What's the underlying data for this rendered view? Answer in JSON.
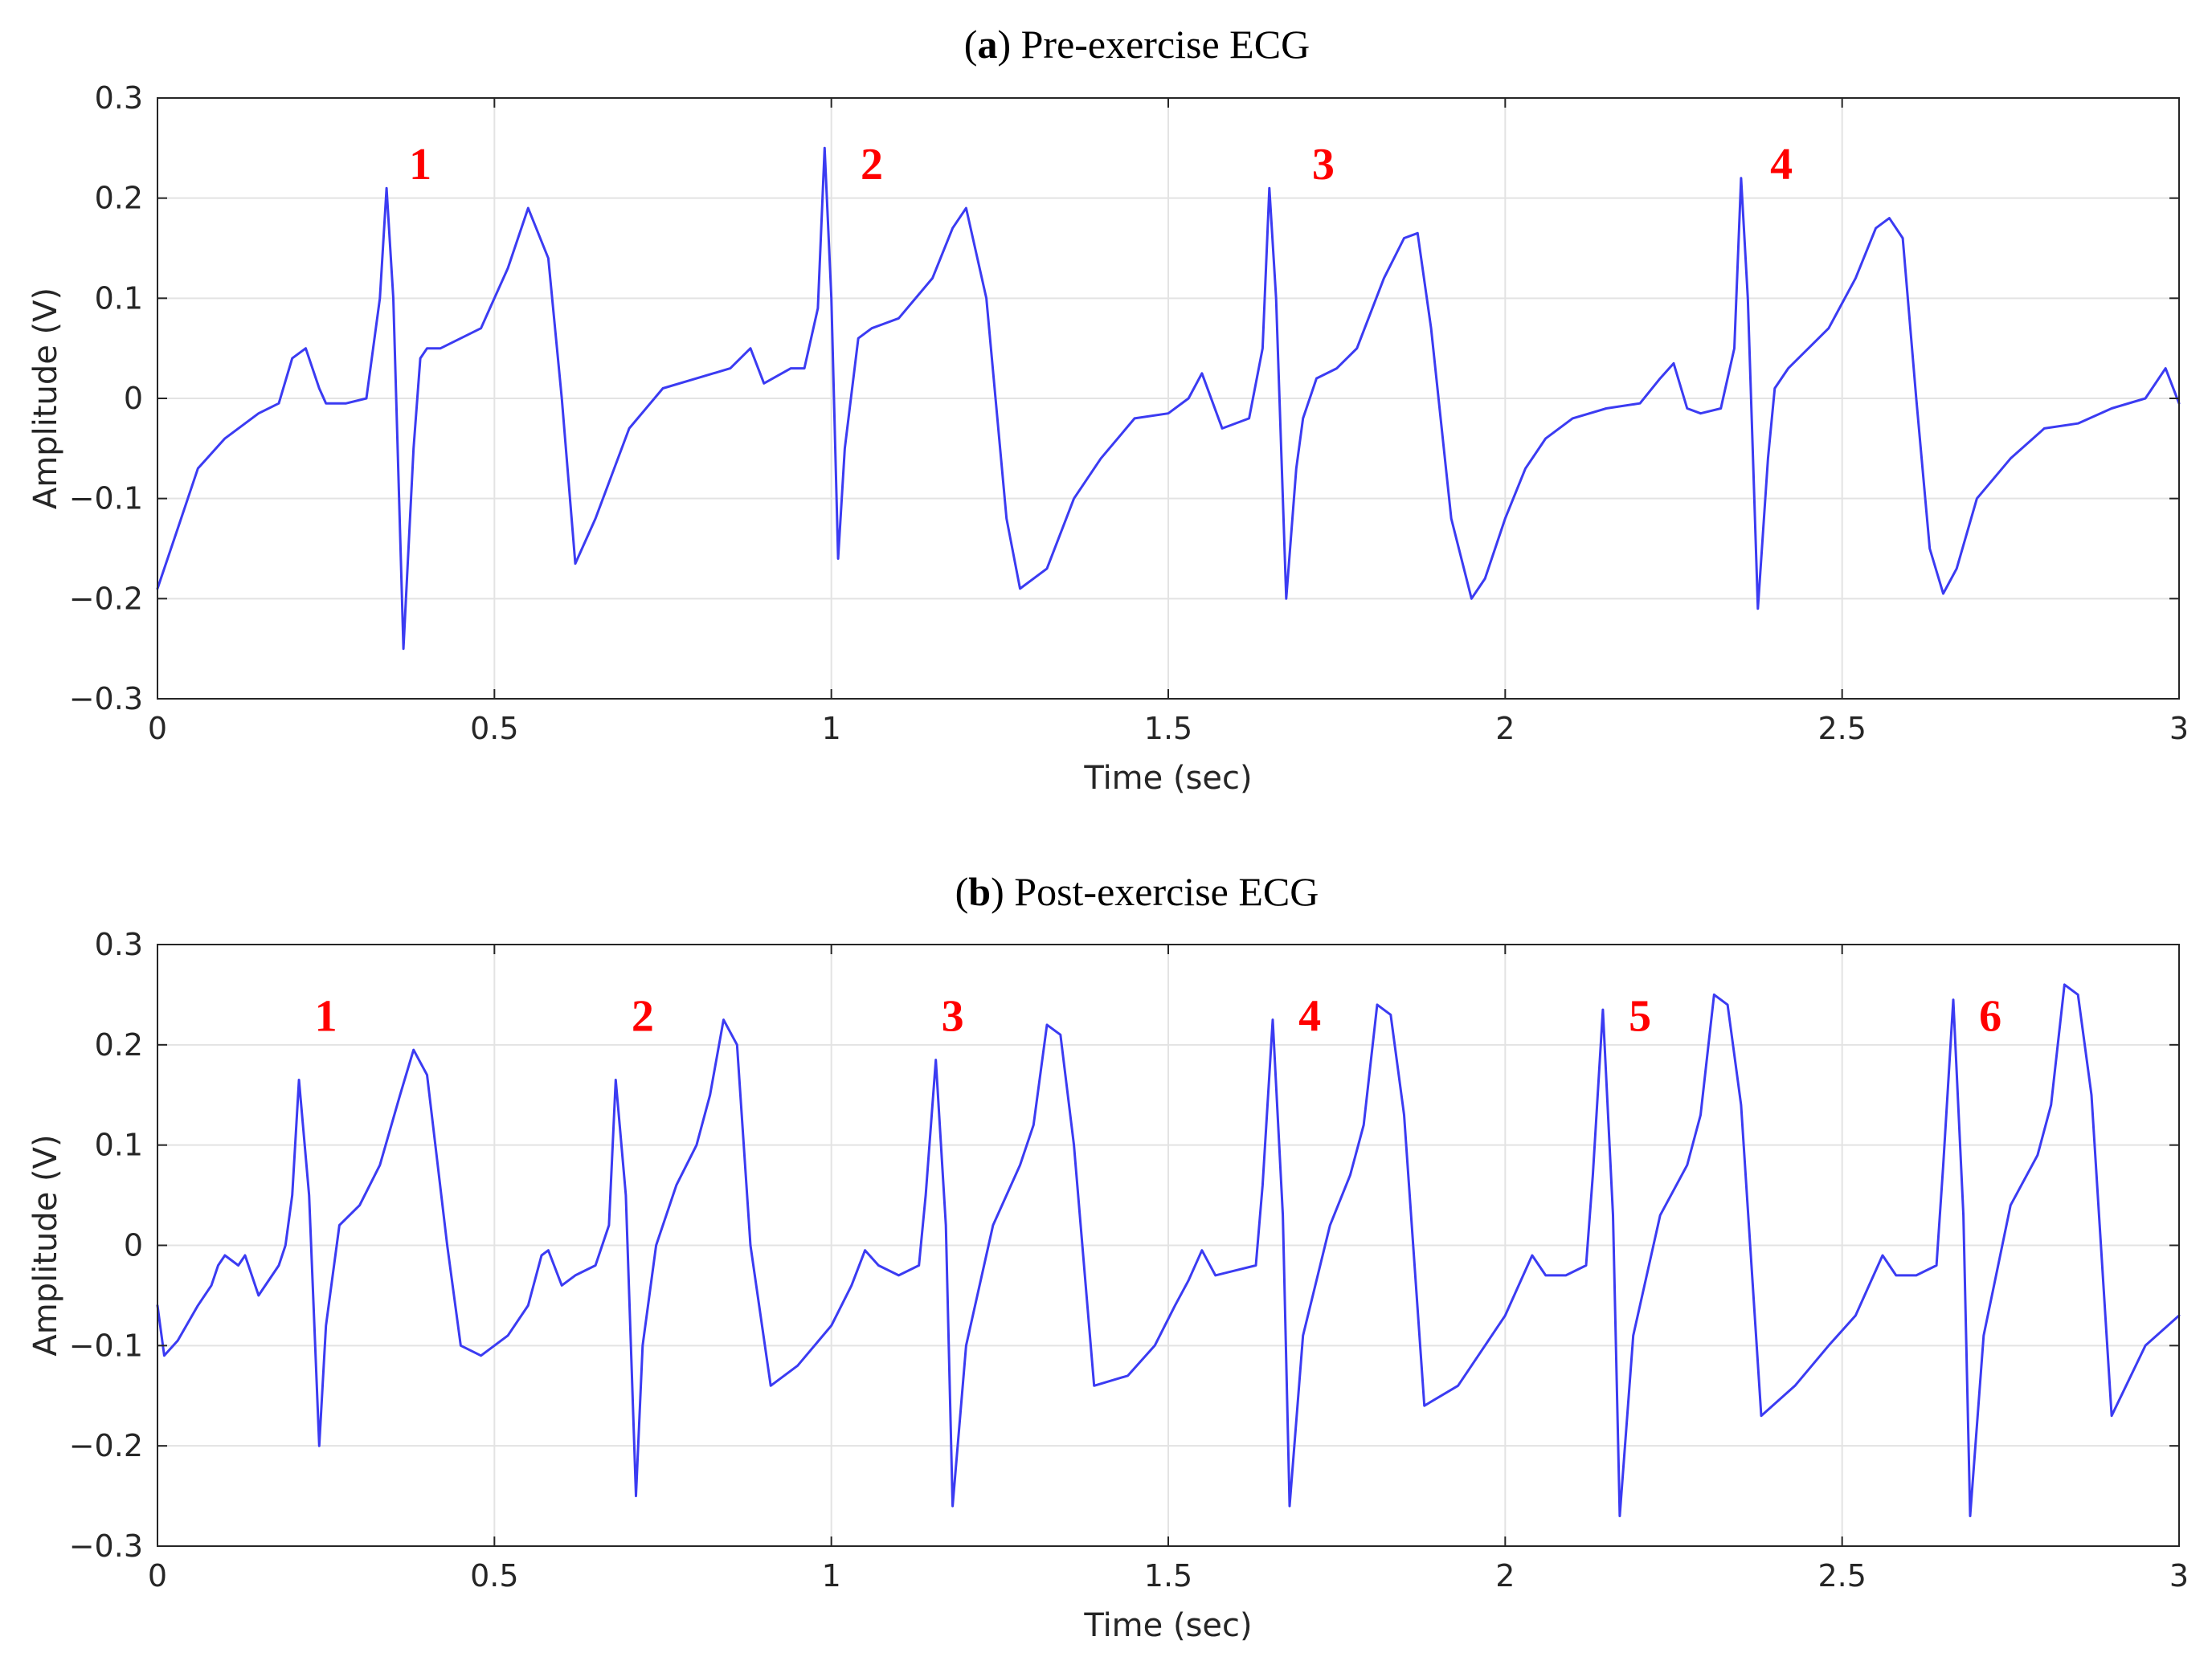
{
  "chart_data": [
    {
      "type": "line",
      "title": "Pre-exercise ECG",
      "title_prefix": "a",
      "xlabel": "Time (sec)",
      "ylabel": "Amplitude (V)",
      "xlim": [
        0,
        3
      ],
      "ylim": [
        -0.3,
        0.3
      ],
      "xticks": [
        0,
        0.5,
        1,
        1.5,
        2,
        2.5,
        3
      ],
      "xtick_labels": [
        "0",
        "0.5",
        "1",
        "1.5",
        "2",
        "2.5",
        "3"
      ],
      "yticks": [
        0.3,
        0.2,
        0.1,
        0,
        -0.1,
        -0.2,
        -0.3
      ],
      "ytick_labels": [
        "0.3",
        "0.2",
        "0.1",
        "0",
        "−0.1",
        "−0.2",
        "−0.3"
      ],
      "grid": true,
      "line_color": "#3b3bf2",
      "annotation_color": "#ff0000",
      "series": [
        {
          "name": "ECG",
          "x": [
            0,
            0.03,
            0.06,
            0.1,
            0.15,
            0.18,
            0.2,
            0.22,
            0.24,
            0.25,
            0.28,
            0.31,
            0.33,
            0.34,
            0.35,
            0.365,
            0.38,
            0.39,
            0.4,
            0.42,
            0.45,
            0.48,
            0.5,
            0.52,
            0.55,
            0.58,
            0.6,
            0.62,
            0.65,
            0.7,
            0.75,
            0.8,
            0.85,
            0.88,
            0.9,
            0.94,
            0.96,
            0.98,
            0.99,
            1.0,
            1.01,
            1.02,
            1.04,
            1.06,
            1.08,
            1.1,
            1.15,
            1.18,
            1.2,
            1.23,
            1.26,
            1.28,
            1.32,
            1.36,
            1.4,
            1.45,
            1.5,
            1.53,
            1.55,
            1.58,
            1.62,
            1.64,
            1.65,
            1.66,
            1.675,
            1.69,
            1.7,
            1.72,
            1.75,
            1.78,
            1.82,
            1.85,
            1.87,
            1.89,
            1.92,
            1.95,
            1.97,
            2.0,
            2.03,
            2.06,
            2.1,
            2.15,
            2.2,
            2.23,
            2.25,
            2.27,
            2.29,
            2.32,
            2.34,
            2.35,
            2.36,
            2.375,
            2.39,
            2.4,
            2.42,
            2.45,
            2.48,
            2.52,
            2.55,
            2.57,
            2.59,
            2.61,
            2.63,
            2.65,
            2.67,
            2.7,
            2.75,
            2.8,
            2.85,
            2.9,
            2.95,
            2.98,
            3.0
          ],
          "y": [
            -0.19,
            -0.13,
            -0.07,
            -0.04,
            -0.015,
            -0.005,
            0.04,
            0.05,
            0.01,
            -0.005,
            -0.005,
            0.0,
            0.1,
            0.21,
            0.1,
            -0.25,
            -0.05,
            0.04,
            0.05,
            0.05,
            0.06,
            0.07,
            0.1,
            0.13,
            0.19,
            0.14,
            0.0,
            -0.165,
            -0.12,
            -0.03,
            0.01,
            0.02,
            0.03,
            0.05,
            0.015,
            0.03,
            0.03,
            0.09,
            0.25,
            0.1,
            -0.16,
            -0.05,
            0.06,
            0.07,
            0.075,
            0.08,
            0.12,
            0.17,
            0.19,
            0.1,
            -0.12,
            -0.19,
            -0.17,
            -0.1,
            -0.06,
            -0.02,
            -0.015,
            0.0,
            0.025,
            -0.03,
            -0.02,
            0.05,
            0.21,
            0.1,
            -0.2,
            -0.07,
            -0.02,
            0.02,
            0.03,
            0.05,
            0.12,
            0.16,
            0.165,
            0.07,
            -0.12,
            -0.2,
            -0.18,
            -0.12,
            -0.07,
            -0.04,
            -0.02,
            -0.01,
            -0.005,
            0.02,
            0.035,
            -0.01,
            -0.015,
            -0.01,
            0.05,
            0.22,
            0.1,
            -0.21,
            -0.06,
            0.01,
            0.03,
            0.05,
            0.07,
            0.12,
            0.17,
            0.18,
            0.16,
            0.0,
            -0.15,
            -0.195,
            -0.17,
            -0.1,
            -0.06,
            -0.03,
            -0.025,
            -0.01,
            0.0,
            0.03,
            -0.005
          ]
        }
      ],
      "annotations": [
        {
          "text": "1",
          "x": 0.39,
          "y": 0.235
        },
        {
          "text": "2",
          "x": 1.06,
          "y": 0.235
        },
        {
          "text": "3",
          "x": 1.73,
          "y": 0.235
        },
        {
          "text": "4",
          "x": 2.41,
          "y": 0.235
        }
      ]
    },
    {
      "type": "line",
      "title": "Post-exercise ECG",
      "title_prefix": "b",
      "xlabel": "Time (sec)",
      "ylabel": "Amplitude (V)",
      "xlim": [
        0,
        3
      ],
      "ylim": [
        -0.3,
        0.3
      ],
      "xticks": [
        0,
        0.5,
        1,
        1.5,
        2,
        2.5,
        3
      ],
      "xtick_labels": [
        "0",
        "0.5",
        "1",
        "1.5",
        "2",
        "2.5",
        "3"
      ],
      "yticks": [
        0.3,
        0.2,
        0.1,
        0,
        -0.1,
        -0.2,
        -0.3
      ],
      "ytick_labels": [
        "0.3",
        "0.2",
        "0.1",
        "0",
        "−0.1",
        "−0.2",
        "−0.3"
      ],
      "grid": true,
      "line_color": "#3b3bf2",
      "annotation_color": "#ff0000",
      "series": [
        {
          "name": "ECG",
          "x": [
            0,
            0.01,
            0.03,
            0.06,
            0.08,
            0.09,
            0.1,
            0.12,
            0.13,
            0.15,
            0.18,
            0.19,
            0.2,
            0.21,
            0.225,
            0.24,
            0.25,
            0.27,
            0.3,
            0.33,
            0.36,
            0.38,
            0.4,
            0.43,
            0.45,
            0.48,
            0.52,
            0.55,
            0.57,
            0.58,
            0.6,
            0.62,
            0.65,
            0.67,
            0.68,
            0.695,
            0.71,
            0.72,
            0.74,
            0.77,
            0.8,
            0.82,
            0.84,
            0.86,
            0.88,
            0.91,
            0.95,
            1.0,
            1.03,
            1.05,
            1.07,
            1.1,
            1.13,
            1.14,
            1.155,
            1.17,
            1.18,
            1.2,
            1.24,
            1.28,
            1.3,
            1.32,
            1.34,
            1.36,
            1.39,
            1.44,
            1.48,
            1.51,
            1.53,
            1.55,
            1.57,
            1.6,
            1.63,
            1.64,
            1.655,
            1.67,
            1.68,
            1.7,
            1.74,
            1.77,
            1.79,
            1.81,
            1.83,
            1.85,
            1.88,
            1.93,
            1.97,
            2.0,
            2.02,
            2.04,
            2.06,
            2.09,
            2.12,
            2.13,
            2.145,
            2.16,
            2.17,
            2.19,
            2.23,
            2.27,
            2.29,
            2.31,
            2.33,
            2.35,
            2.38,
            2.43,
            2.48,
            2.52,
            2.54,
            2.56,
            2.58,
            2.61,
            2.64,
            2.65,
            2.665,
            2.68,
            2.69,
            2.71,
            2.75,
            2.79,
            2.81,
            2.83,
            2.85,
            2.87,
            2.9,
            2.95,
            3.0
          ],
          "y": [
            -0.06,
            -0.11,
            -0.095,
            -0.06,
            -0.04,
            -0.02,
            -0.01,
            -0.02,
            -0.01,
            -0.05,
            -0.02,
            0.0,
            0.05,
            0.165,
            0.05,
            -0.2,
            -0.08,
            0.02,
            0.04,
            0.08,
            0.15,
            0.195,
            0.17,
            0.0,
            -0.1,
            -0.11,
            -0.09,
            -0.06,
            -0.01,
            -0.005,
            -0.04,
            -0.03,
            -0.02,
            0.02,
            0.165,
            0.05,
            -0.25,
            -0.1,
            0.0,
            0.06,
            0.1,
            0.15,
            0.225,
            0.2,
            0.0,
            -0.14,
            -0.12,
            -0.08,
            -0.04,
            -0.005,
            -0.02,
            -0.03,
            -0.02,
            0.05,
            0.185,
            0.02,
            -0.26,
            -0.1,
            0.02,
            0.08,
            0.12,
            0.22,
            0.21,
            0.1,
            -0.14,
            -0.13,
            -0.1,
            -0.06,
            -0.035,
            -0.005,
            -0.03,
            -0.025,
            -0.02,
            0.06,
            0.225,
            0.03,
            -0.26,
            -0.09,
            0.02,
            0.07,
            0.12,
            0.24,
            0.23,
            0.13,
            -0.16,
            -0.14,
            -0.1,
            -0.07,
            -0.04,
            -0.01,
            -0.03,
            -0.03,
            -0.02,
            0.07,
            0.235,
            0.03,
            -0.27,
            -0.09,
            0.03,
            0.08,
            0.13,
            0.25,
            0.24,
            0.14,
            -0.17,
            -0.14,
            -0.1,
            -0.07,
            -0.04,
            -0.01,
            -0.03,
            -0.03,
            -0.02,
            0.08,
            0.245,
            0.03,
            -0.27,
            -0.09,
            0.04,
            0.09,
            0.14,
            0.26,
            0.25,
            0.15,
            -0.17,
            -0.1,
            -0.07
          ]
        }
      ],
      "annotations": [
        {
          "text": "1",
          "x": 0.25,
          "y": 0.23
        },
        {
          "text": "2",
          "x": 0.72,
          "y": 0.23
        },
        {
          "text": "3",
          "x": 1.18,
          "y": 0.23
        },
        {
          "text": "4",
          "x": 1.71,
          "y": 0.23
        },
        {
          "text": "5",
          "x": 2.2,
          "y": 0.23
        },
        {
          "text": "6",
          "x": 2.72,
          "y": 0.23
        }
      ]
    }
  ]
}
